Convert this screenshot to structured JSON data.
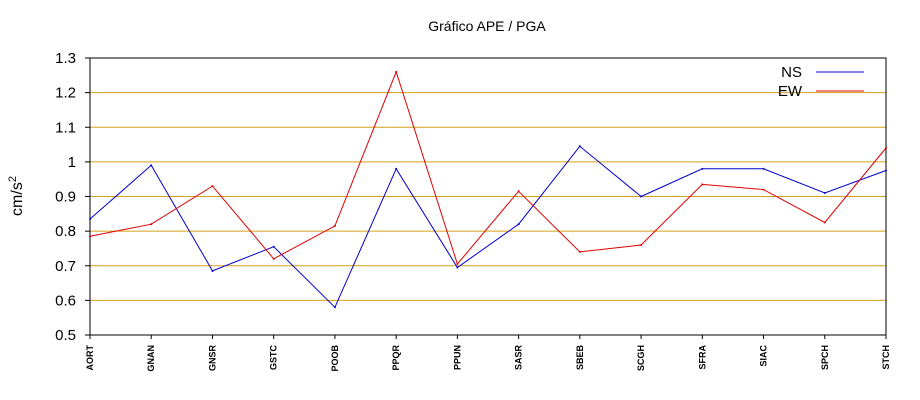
{
  "chart_data": {
    "type": "line",
    "title": "Gráfico  APE / PGA",
    "ylabel": "cm/s",
    "ylabel_superscript": "2",
    "xlabel": "",
    "ylim": [
      0.5,
      1.3
    ],
    "yticks": [
      0.5,
      0.6,
      0.7,
      0.8,
      0.9,
      1,
      1.1,
      1.2,
      1.3
    ],
    "ytick_labels": [
      "0.5",
      "0.6",
      "0.7",
      "0.8",
      "0.9",
      "1",
      "1.1",
      "1.2",
      "1.3"
    ],
    "grid": "horizontal",
    "grid_color": "#d4a017",
    "legend_position": "top-right",
    "categories": [
      "AORT",
      "GNAN",
      "GNSR",
      "GSTC",
      "POOB",
      "PPQR",
      "PPUN",
      "SASR",
      "SBEB",
      "SCGH",
      "SFRA",
      "SIAC",
      "SPCH",
      "STCH"
    ],
    "series": [
      {
        "name": "NS",
        "color": "#0000cc",
        "values": [
          0.835,
          0.99,
          0.685,
          0.755,
          0.58,
          0.98,
          0.695,
          0.82,
          1.045,
          0.9,
          0.98,
          0.98,
          0.91,
          0.975
        ]
      },
      {
        "name": "EW",
        "color": "#dd0000",
        "values": [
          0.785,
          0.82,
          0.93,
          0.72,
          0.815,
          1.26,
          0.705,
          0.915,
          0.74,
          0.76,
          0.935,
          0.92,
          0.825,
          1.04
        ]
      }
    ]
  }
}
